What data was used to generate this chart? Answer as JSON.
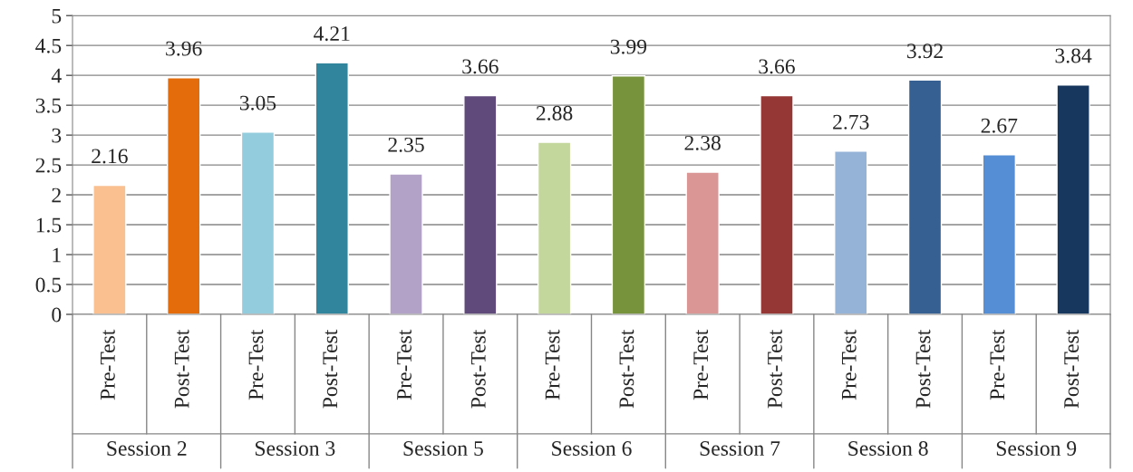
{
  "chart_data": {
    "type": "bar",
    "categories": [
      "Pre-Test",
      "Post-Test",
      "Pre-Test",
      "Post-Test",
      "Pre-Test",
      "Post-Test",
      "Pre-Test",
      "Post-Test",
      "Pre-Test",
      "Post-Test",
      "Pre-Test",
      "Post-Test",
      "Pre-Test",
      "Post-Test"
    ],
    "values": [
      2.16,
      3.96,
      3.05,
      4.21,
      2.35,
      3.66,
      2.88,
      3.99,
      2.38,
      3.66,
      2.73,
      3.92,
      2.67,
      3.84
    ],
    "colors": [
      "#fac090",
      "#e46c0a",
      "#93cddd",
      "#31859c",
      "#b3a2c7",
      "#604a7b",
      "#c3d69b",
      "#77933c",
      "#d99694",
      "#953735",
      "#95b3d7",
      "#376092",
      "#558ed5",
      "#17375e"
    ],
    "annotations": [
      "Session 2",
      "Session 3",
      "Session 5",
      "Session 6",
      "Session 7",
      "Session 8",
      "Session 9"
    ],
    "ylim": [
      0,
      5
    ],
    "yticks": [
      0,
      0.5,
      1,
      1.5,
      2,
      2.5,
      3,
      3.5,
      4,
      4.5,
      5
    ],
    "grid": "y",
    "data_labels": true
  }
}
